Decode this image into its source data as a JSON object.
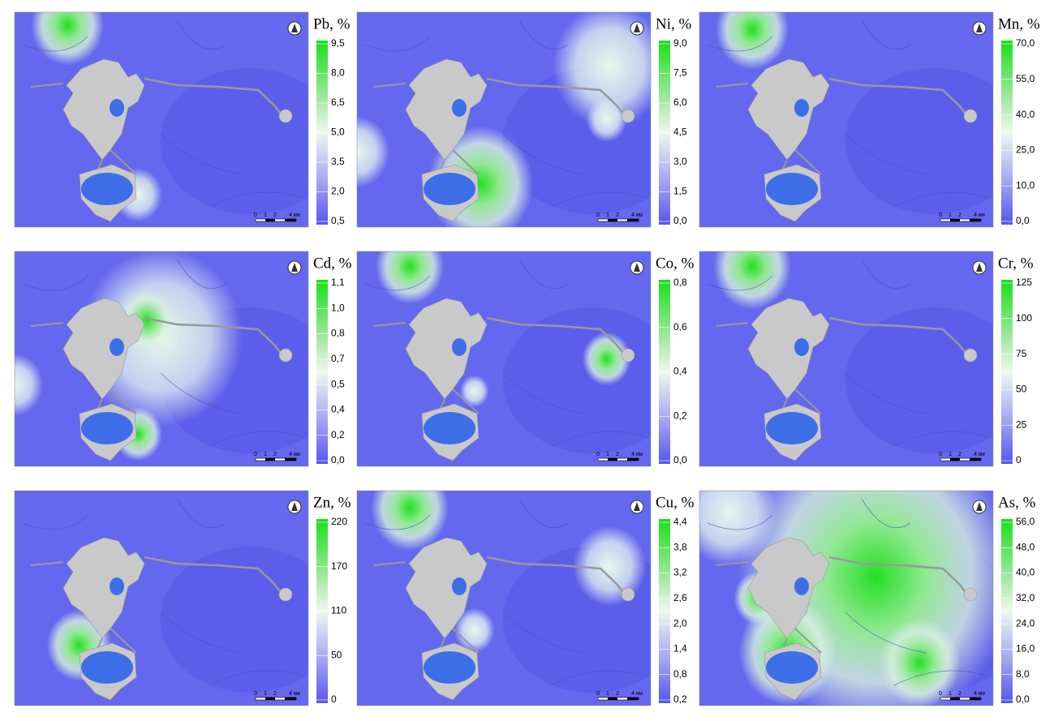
{
  "scale_bar": [
    "0",
    "1",
    "2",
    "4 км"
  ],
  "panels": [
    {
      "title": "Pb, %",
      "ticks": [
        "9,5",
        "8,0",
        "6,5",
        "5,0",
        "3,5",
        "2,0",
        "0,5"
      ]
    },
    {
      "title": "Ni, %",
      "ticks": [
        "9,0",
        "7,5",
        "6,0",
        "4,5",
        "3,0",
        "1,5",
        "0,0"
      ]
    },
    {
      "title": "Mn, %",
      "ticks": [
        "70,0",
        "55,0",
        "40,0",
        "25,0",
        "10,0",
        "0,0"
      ]
    },
    {
      "title": "Cd, %",
      "ticks": [
        "1,1",
        "1,0",
        "0,8",
        "0,7",
        "0,5",
        "0,4",
        "0,2",
        "0,0"
      ]
    },
    {
      "title": "Co, %",
      "ticks": [
        "0,8",
        "0,6",
        "0,4",
        "0,2",
        "0,0"
      ]
    },
    {
      "title": "Cr, %",
      "ticks": [
        "125",
        "100",
        "75",
        "50",
        "25",
        "0"
      ]
    },
    {
      "title": "Zn, %",
      "ticks": [
        "220",
        "170",
        "110",
        "50",
        "0"
      ]
    },
    {
      "title": "Cu, %",
      "ticks": [
        "4,4",
        "3,8",
        "3,2",
        "2,6",
        "2,0",
        "1,4",
        "0,8",
        "0,2"
      ]
    },
    {
      "title": "As, %",
      "ticks": [
        "56,0",
        "48,0",
        "40,0",
        "32,0",
        "24,0",
        "16,0",
        "8,0",
        "0,0"
      ]
    }
  ]
}
